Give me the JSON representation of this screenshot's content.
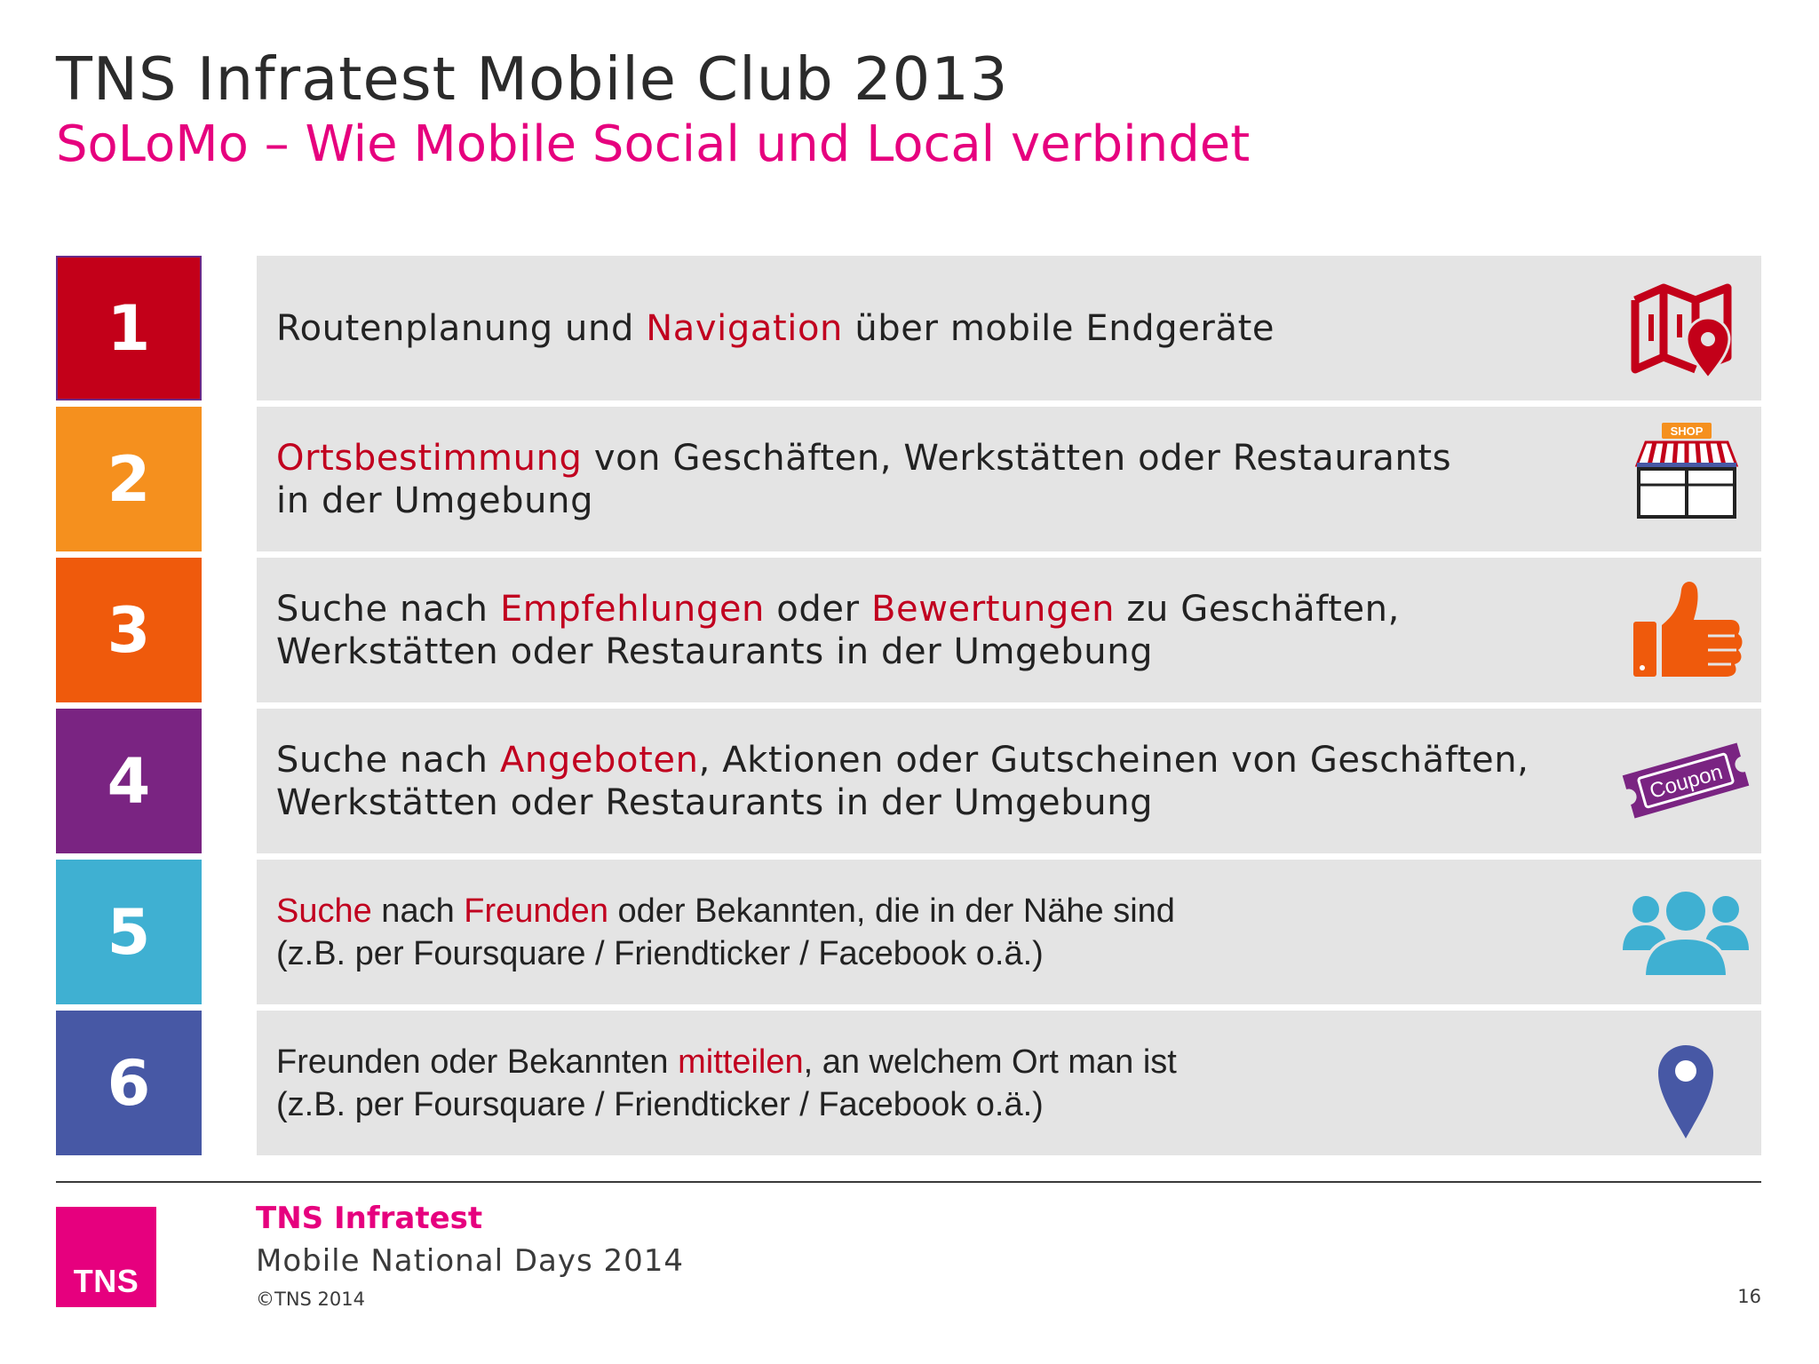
{
  "header": {
    "title": "TNS Infratest Mobile Club 2013",
    "subtitle": "SoLoMo – Wie Mobile Social und Local verbindet"
  },
  "colors": {
    "pink": "#e6007e",
    "highlight": "#c1001f",
    "row_box": "#e4e4e4",
    "num": [
      "#c30019",
      "#f5901e",
      "#ef5a0c",
      "#7a2482",
      "#3fb0d2",
      "#4758a5"
    ]
  },
  "rows": [
    {
      "number": "1",
      "icon": "map-pin-icon",
      "lines": [
        [
          {
            "t": "Routenplanung und ",
            "hl": false
          },
          {
            "t": "Navigation",
            "hl": true
          },
          {
            "t": " über mobile Endgeräte",
            "hl": false
          }
        ]
      ]
    },
    {
      "number": "2",
      "icon": "shop-icon",
      "icon_label": "SHOP",
      "lines": [
        [
          {
            "t": "Ortsbestimmung",
            "hl": true
          },
          {
            "t": " von Geschäften, Werkstätten oder Restaurants",
            "hl": false
          }
        ],
        [
          {
            "t": "in der Umgebung",
            "hl": false
          }
        ]
      ]
    },
    {
      "number": "3",
      "icon": "thumbs-up-icon",
      "lines": [
        [
          {
            "t": "Suche nach ",
            "hl": false
          },
          {
            "t": "Empfehlungen",
            "hl": true
          },
          {
            "t": " oder ",
            "hl": false
          },
          {
            "t": "Bewertungen",
            "hl": true
          },
          {
            "t": " zu Geschäften,",
            "hl": false
          }
        ],
        [
          {
            "t": "Werkstätten oder Restaurants in der Umgebung",
            "hl": false
          }
        ]
      ]
    },
    {
      "number": "4",
      "icon": "coupon-icon",
      "icon_label": "Coupon",
      "lines": [
        [
          {
            "t": "Suche nach ",
            "hl": false
          },
          {
            "t": "Angeboten",
            "hl": true
          },
          {
            "t": ", Aktionen oder Gutscheinen von Geschäften,",
            "hl": false
          }
        ],
        [
          {
            "t": "Werkstätten oder Restaurants in der Umgebung",
            "hl": false
          }
        ]
      ]
    },
    {
      "number": "5",
      "icon": "people-group-icon",
      "lines": [
        [
          {
            "t": "Suche",
            "hl": true
          },
          {
            "t": " nach ",
            "hl": false
          },
          {
            "t": "Freunden",
            "hl": true
          },
          {
            "t": " oder Bekannten, die in der Nähe sind",
            "hl": false
          }
        ],
        [
          {
            "t": "(z.B. per Foursquare / Friendticker / Facebook o.ä.)",
            "hl": false
          }
        ]
      ]
    },
    {
      "number": "6",
      "icon": "location-pin-icon",
      "lines": [
        [
          {
            "t": "Freunden oder Bekannten ",
            "hl": false
          },
          {
            "t": "mitteilen",
            "hl": true
          },
          {
            "t": ", an welchem Ort man ist",
            "hl": false
          }
        ],
        [
          {
            "t": "(z.B. per Foursquare / Friendticker / Facebook o.ä.)",
            "hl": false
          }
        ]
      ]
    }
  ],
  "footer": {
    "logo_text": "TNS",
    "company": "TNS Infratest",
    "event": "Mobile National Days 2014",
    "copyright": "©TNS 2014",
    "page_number": "16"
  }
}
